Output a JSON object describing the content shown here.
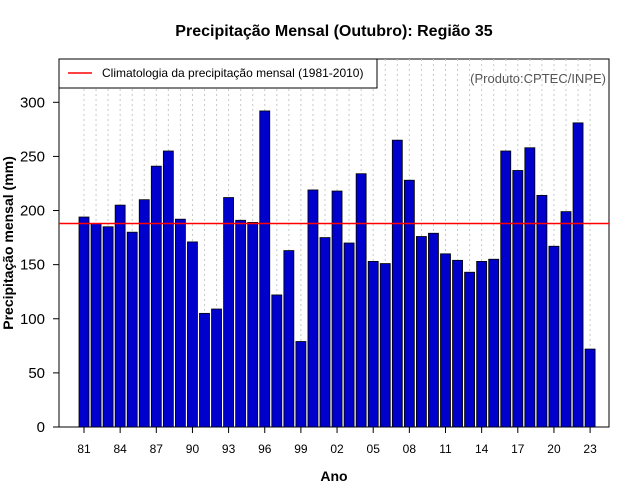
{
  "chart_data": {
    "type": "bar",
    "title": "Precipitação Mensal (Outubro): Região 35",
    "xlabel": "Ano",
    "ylabel": "Precipitação mensal (mm)",
    "credit": "(Produto:CPTEC/INPE)",
    "ylim": [
      0,
      340
    ],
    "yticks": [
      0,
      50,
      100,
      150,
      200,
      250,
      300
    ],
    "years": [
      1981,
      1982,
      1983,
      1984,
      1985,
      1986,
      1987,
      1988,
      1989,
      1990,
      1991,
      1992,
      1993,
      1994,
      1995,
      1996,
      1997,
      1998,
      1999,
      2000,
      2001,
      2002,
      2003,
      2004,
      2005,
      2006,
      2007,
      2008,
      2009,
      2010,
      2011,
      2012,
      2013,
      2014,
      2015,
      2016,
      2017,
      2018,
      2019,
      2020,
      2021,
      2022,
      2023
    ],
    "x_tick_labels": [
      "81",
      "84",
      "87",
      "90",
      "93",
      "96",
      "99",
      "02",
      "05",
      "08",
      "11",
      "14",
      "17",
      "20",
      "23"
    ],
    "values": [
      194,
      188,
      185,
      205,
      180,
      210,
      241,
      255,
      192,
      171,
      105,
      109,
      212,
      191,
      189,
      292,
      122,
      163,
      79,
      219,
      175,
      218,
      170,
      234,
      153,
      151,
      265,
      228,
      176,
      179,
      160,
      154,
      143,
      153,
      155,
      255,
      237,
      258,
      214,
      167,
      199,
      281,
      72
    ],
    "series": [
      {
        "name": "Precipitação mensal",
        "values": "see values"
      }
    ],
    "climatology": {
      "label": "Climatologia da precipitação mensal (1981-2010)",
      "value": 188
    },
    "colors": {
      "bar": "#0000cc",
      "bar_edge": "#000000",
      "climatology": "#ff0000",
      "grid": "#c8c8c8"
    },
    "grid": "vertical-dotted",
    "legend_position": "top-left"
  }
}
